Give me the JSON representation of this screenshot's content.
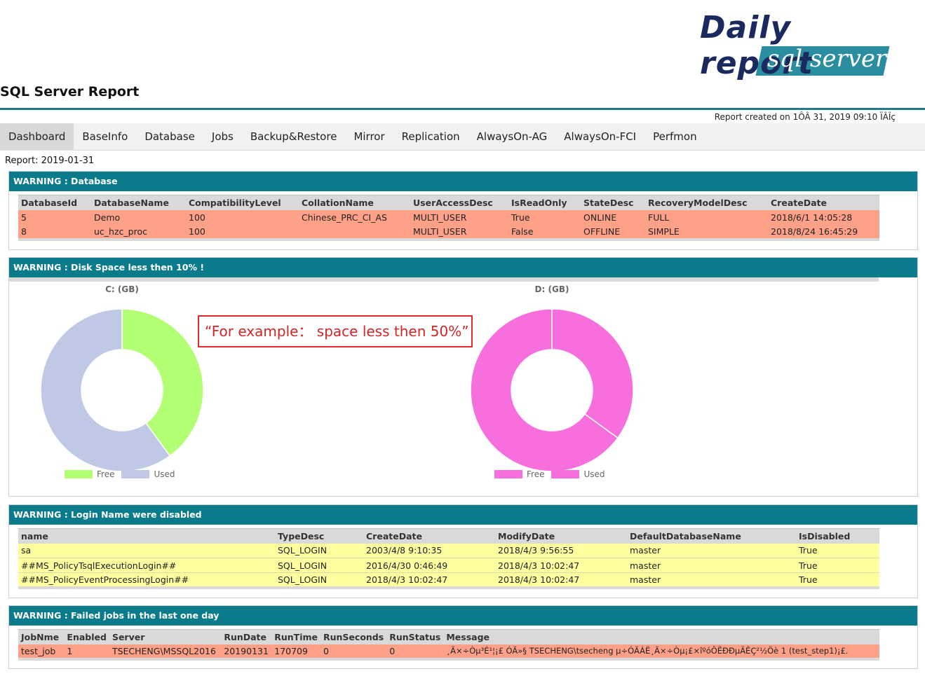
{
  "logo": {
    "daily": "Daily report",
    "sql": "sql server"
  },
  "header": {
    "title": "SQL Server Report",
    "created": "Report created on 1ÔÂ 31, 2019 09:10 ÏÂÎç"
  },
  "tabs": [
    "Dashboard",
    "BaseInfo",
    "Database",
    "Jobs",
    "Backup&Restore",
    "Mirror",
    "Replication",
    "AlwaysOn-AG",
    "AlwaysOn-FCI",
    "Perfmon"
  ],
  "report_date": "Report: 2019-01-31",
  "db_panel": {
    "title": "WARNING : Database",
    "columns": [
      "DatabaseId",
      "DatabaseName",
      "CompatibilityLevel",
      "CollationName",
      "UserAccessDesc",
      "IsReadOnly",
      "StateDesc",
      "RecoveryModelDesc",
      "CreateDate"
    ],
    "rows": [
      [
        "5",
        "Demo",
        "100",
        "Chinese_PRC_CI_AS",
        "MULTI_USER",
        "True",
        "ONLINE",
        "FULL",
        "2018/6/1 14:05:28"
      ],
      [
        "8",
        "uc_hzc_proc",
        "100",
        "",
        "MULTI_USER",
        "False",
        "OFFLINE",
        "SIMPLE",
        "2018/8/24 16:45:29"
      ]
    ]
  },
  "disk_panel": {
    "title": "WARNING : Disk Space less then 10% !"
  },
  "chart_data": [
    {
      "type": "pie",
      "title": "C: (GB)",
      "labels": [
        "Free",
        "Used"
      ],
      "values": [
        40,
        60
      ],
      "colors": [
        "#b3ff73",
        "#bfc8e4"
      ],
      "donut": true,
      "legend": "bottom"
    },
    {
      "type": "pie",
      "title": "D: (GB)",
      "labels": [
        "Free",
        "Used"
      ],
      "values": [
        35,
        65
      ],
      "colors": [
        "#f76fdc",
        "#f76fdc"
      ],
      "donut": true,
      "legend": "bottom"
    }
  ],
  "callout": "“For example： space less then 50%”",
  "login_panel": {
    "title": "WARNING : Login Name were disabled",
    "columns": [
      "name",
      "TypeDesc",
      "CreateDate",
      "ModifyDate",
      "DefaultDatabaseName",
      "IsDisabled"
    ],
    "rows": [
      [
        "sa",
        "SQL_LOGIN",
        "2003/4/8 9:10:35",
        "2018/4/3 9:56:55",
        "master",
        "True"
      ],
      [
        "##MS_PolicyTsqlExecutionLogin##",
        "SQL_LOGIN",
        "2016/4/30 0:46:49",
        "2018/4/3 10:02:47",
        "master",
        "True"
      ],
      [
        "##MS_PolicyEventProcessingLogin##",
        "SQL_LOGIN",
        "2018/4/3 10:02:47",
        "2018/4/3 10:02:47",
        "master",
        "True"
      ]
    ]
  },
  "jobs_panel": {
    "title": "WARNING : Failed jobs in the last one day",
    "columns": [
      "JobNme",
      "Enabled",
      "Server",
      "RunDate",
      "RunTime",
      "RunSeconds",
      "RunStatus",
      "Message"
    ],
    "rows": [
      [
        "test_job",
        "1",
        "TSECHENG\\MSSQL2016",
        "20190131",
        "170709",
        "0",
        "0",
        "¸Ã×÷Òµ³É¹¦¡£ ÓÃ»§ TSECHENG\\tsecheng µ÷ÓÃÁË¸Ã×÷Òµ¡£×îºóÔËÐÐµÄÊÇ²½Öè 1 (test_step1)¡£."
      ]
    ]
  }
}
